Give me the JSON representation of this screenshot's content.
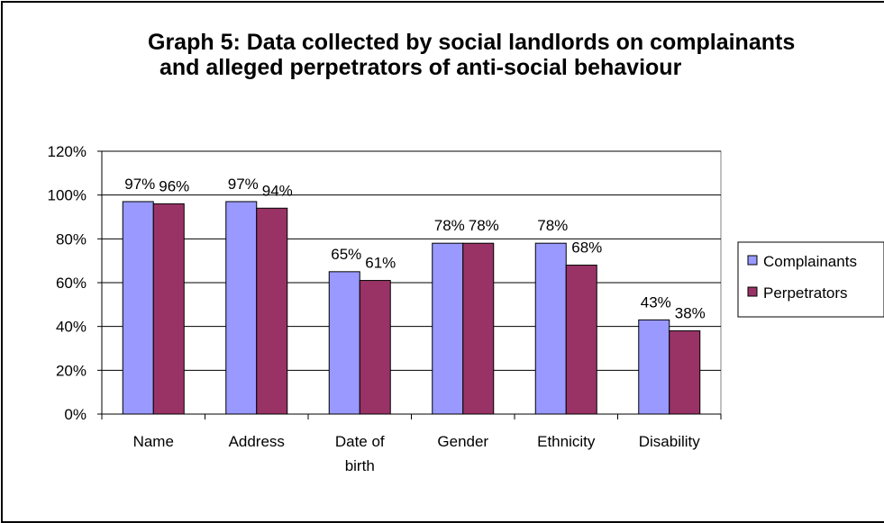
{
  "chart_data": {
    "type": "bar",
    "title_lines": [
      "Graph 5: Data collected by social landlords on complainants",
      "and alleged perpetrators of anti-social behaviour"
    ],
    "categories": [
      [
        "Name"
      ],
      [
        "Address"
      ],
      [
        "Date of",
        "birth"
      ],
      [
        "Gender"
      ],
      [
        "Ethnicity"
      ],
      [
        "Disability"
      ]
    ],
    "series": [
      {
        "name": "Complainants",
        "color": "#9999ff",
        "values": [
          97,
          97,
          65,
          78,
          78,
          43
        ],
        "labels": [
          "97%",
          "97%",
          "65%",
          "78%",
          "78%",
          "43%"
        ]
      },
      {
        "name": "Perpetrators",
        "color": "#993366",
        "values": [
          96,
          94,
          61,
          78,
          68,
          38
        ],
        "labels": [
          "96%",
          "94%",
          "61%",
          "78%",
          "68%",
          "38%"
        ]
      }
    ],
    "ylim": [
      0,
      120
    ],
    "yticks": [
      0,
      20,
      40,
      60,
      80,
      100,
      120
    ],
    "ytick_labels": [
      "0%",
      "20%",
      "40%",
      "60%",
      "80%",
      "100%",
      "120%"
    ],
    "grid": true,
    "legend_position": "right"
  }
}
